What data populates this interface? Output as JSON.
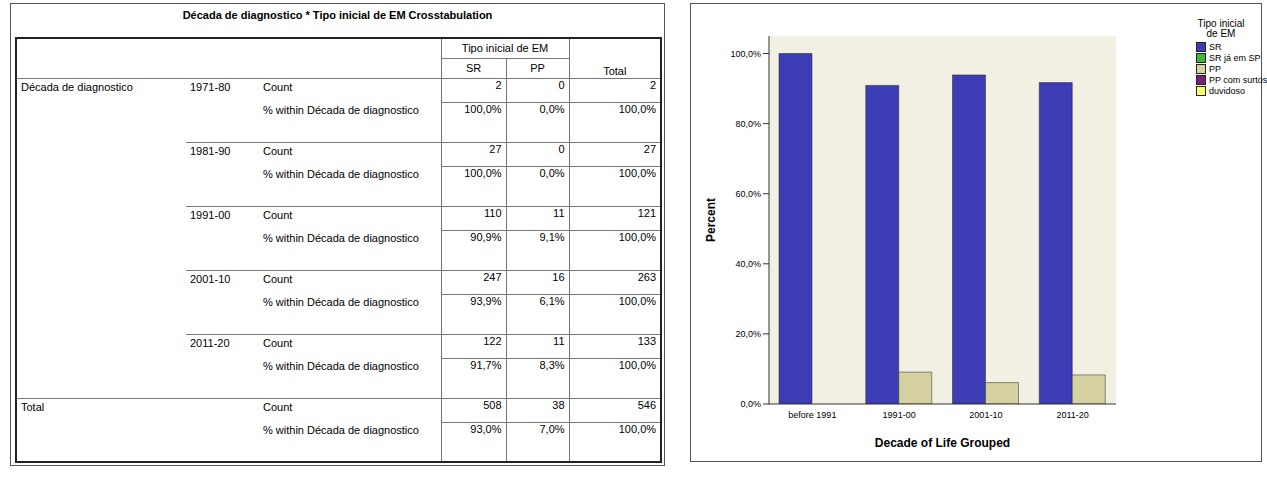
{
  "table": {
    "title": "Década de diagnostico * Tipo inicial de EM Crosstabulation",
    "row_variable": "Década de diagnostico",
    "column_variable": "Tipo inicial de EM",
    "columns": [
      "SR",
      "PP",
      "Total"
    ],
    "groups": [
      {
        "label": "1971-80",
        "rows": [
          {
            "stat": "Count",
            "cells": [
              "2",
              "0",
              "2"
            ]
          },
          {
            "stat": "% within Década de diagnostico",
            "cells": [
              "100,0%",
              "0,0%",
              "100,0%"
            ]
          }
        ]
      },
      {
        "label": "1981-90",
        "rows": [
          {
            "stat": "Count",
            "cells": [
              "27",
              "0",
              "27"
            ]
          },
          {
            "stat": "% within Década de diagnostico",
            "cells": [
              "100,0%",
              "0,0%",
              "100,0%"
            ]
          }
        ]
      },
      {
        "label": "1991-00",
        "rows": [
          {
            "stat": "Count",
            "cells": [
              "110",
              "11",
              "121"
            ]
          },
          {
            "stat": "% within Década de diagnostico",
            "cells": [
              "90,9%",
              "9,1%",
              "100,0%"
            ]
          }
        ]
      },
      {
        "label": "2001-10",
        "rows": [
          {
            "stat": "Count",
            "cells": [
              "247",
              "16",
              "263"
            ]
          },
          {
            "stat": "% within Década de diagnostico",
            "cells": [
              "93,9%",
              "6,1%",
              "100,0%"
            ]
          }
        ]
      },
      {
        "label": "2011-20",
        "rows": [
          {
            "stat": "Count",
            "cells": [
              "122",
              "11",
              "133"
            ]
          },
          {
            "stat": "% within Década de diagnostico",
            "cells": [
              "91,7%",
              "8,3%",
              "100,0%"
            ]
          }
        ]
      }
    ],
    "total": {
      "label": "Total",
      "rows": [
        {
          "stat": "Count",
          "cells": [
            "508",
            "38",
            "546"
          ]
        },
        {
          "stat": "% within Década de diagnostico",
          "cells": [
            "93,0%",
            "7,0%",
            "100,0%"
          ]
        }
      ]
    }
  },
  "chart_data": {
    "type": "bar",
    "x_label": "Decade of Life Grouped",
    "y_label": "Percent",
    "legend_title": "Tipo inicial de EM",
    "legend": "right",
    "categories": [
      "before 1991",
      "1991-00",
      "2001-10",
      "2011-20"
    ],
    "series": [
      {
        "name": "SR",
        "color": "#3c3cb4",
        "values": [
          100,
          90.9,
          93.9,
          91.7
        ]
      },
      {
        "name": "SR já em SP",
        "color": "#3db83d",
        "values": [
          null,
          null,
          null,
          null
        ]
      },
      {
        "name": "PP",
        "color": "#d5d1a0",
        "values": [
          0,
          9.1,
          6.1,
          8.3
        ]
      },
      {
        "name": "PP com surtos",
        "color": "#7a1e7a",
        "values": [
          null,
          null,
          null,
          null
        ]
      },
      {
        "name": "duvidoso",
        "color": "#ffff66",
        "values": [
          null,
          null,
          null,
          null
        ]
      }
    ],
    "ylim": [
      0,
      105
    ],
    "yticks": [
      {
        "value": 0,
        "label": "0,0%"
      },
      {
        "value": 20,
        "label": "20,0%"
      },
      {
        "value": 40,
        "label": "40,0%"
      },
      {
        "value": 60,
        "label": "60,0%"
      },
      {
        "value": 80,
        "label": "80,0%"
      },
      {
        "value": 100,
        "label": "100,0%"
      }
    ],
    "grid": false
  }
}
